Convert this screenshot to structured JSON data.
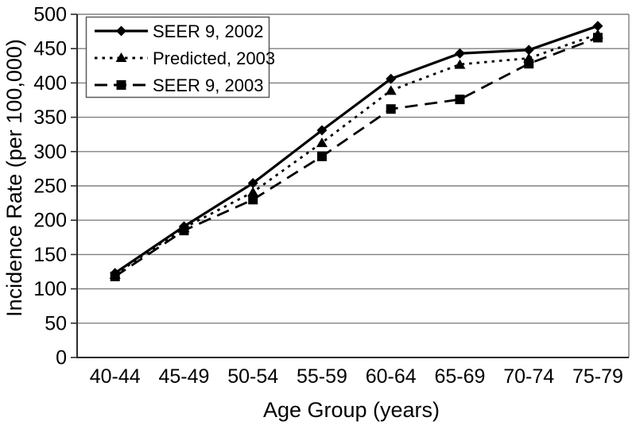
{
  "chart_data": {
    "type": "line",
    "title": "",
    "xlabel": "Age Group (years)",
    "ylabel": "Incidence Rate (per 100,000)",
    "categories": [
      "40-44",
      "45-49",
      "50-54",
      "55-59",
      "60-64",
      "65-69",
      "70-74",
      "75-79"
    ],
    "ylim": [
      0,
      500
    ],
    "ytick_step": 50,
    "grid": "horizontal-only",
    "legend_position": "top-left",
    "series": [
      {
        "name": "SEER 9, 2002",
        "line_style": "solid",
        "marker": "diamond",
        "color": "#000000",
        "values": [
          123,
          191,
          254,
          331,
          406,
          443,
          448,
          483
        ]
      },
      {
        "name": "Predicted, 2003",
        "line_style": "dotted",
        "marker": "triangle",
        "color": "#000000",
        "values": [
          121,
          189,
          241,
          313,
          389,
          427,
          436,
          471
        ]
      },
      {
        "name": "SEER 9, 2003",
        "line_style": "dashed",
        "marker": "square",
        "color": "#000000",
        "values": [
          118,
          185,
          230,
          293,
          362,
          376,
          428,
          466
        ]
      }
    ]
  },
  "colors": {
    "background": "#ffffff",
    "gridline": "#808080",
    "axis": "#2b2b2b",
    "plot_border": "#808080",
    "legend_border": "#5a5a5a",
    "series_color": "#000000"
  }
}
